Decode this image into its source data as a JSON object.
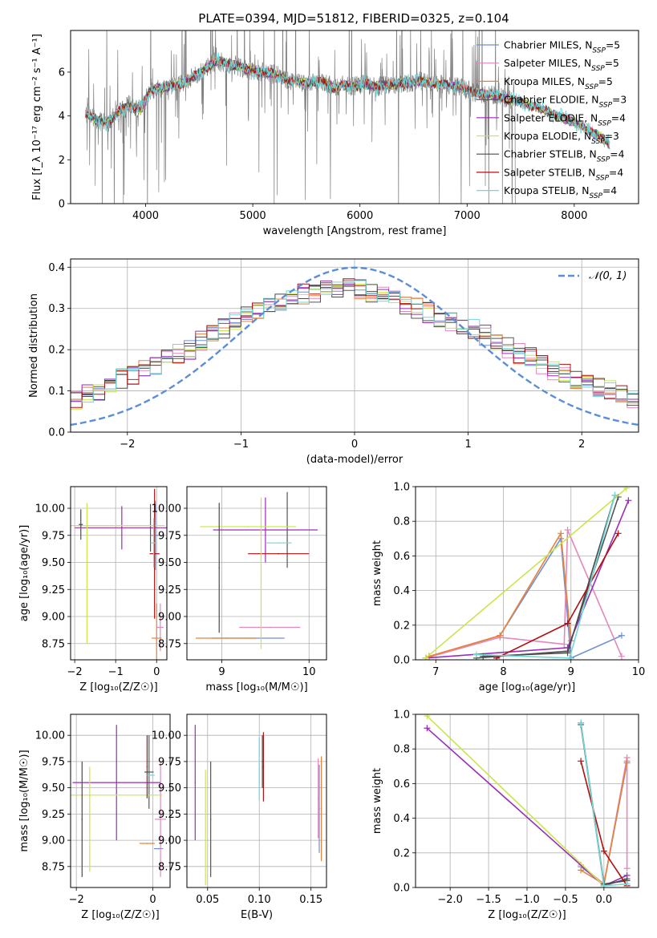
{
  "figure": {
    "title": "PLATE=0394, MJD=51812, FIBERID=0325, z=0.104"
  },
  "colors": {
    "Chabrier MILES": "#6f8fd6",
    "Salpeter MILES": "#e389b9",
    "Kroupa MILES": "#e8823a",
    "Chabrier ELODIE": "#555555",
    "Salpeter ELODIE": "#9a2db8",
    "Kroupa ELODIE": "#c8e64a",
    "Chabrier STELIB": "#4a4a4a",
    "Salpeter STELIB": "#b01010",
    "Kroupa STELIB": "#6fd8d8",
    "data": "#808080",
    "normal": "#5b8ed8"
  },
  "chart_data": [
    {
      "id": "spectrum",
      "type": "line",
      "title": "PLATE=0394, MJD=51812, FIBERID=0325, z=0.104",
      "xlabel": "wavelength [Angstrom, rest frame]",
      "ylabel": "Flux [f_λ 10⁻¹⁷ erg cm⁻² s⁻¹ A⁻¹]",
      "xlim": [
        3300,
        8600
      ],
      "ylim": [
        0,
        7.9
      ],
      "xticks": [
        4000,
        5000,
        6000,
        7000,
        8000
      ],
      "yticks": [
        0,
        2,
        4,
        6
      ],
      "grid": false,
      "legend_position": "upper-right",
      "legend": [
        "Chabrier MILES, N_SSP=5",
        "Salpeter MILES, N_SSP=5",
        "Kroupa MILES, N_SSP=5",
        "Chabrier ELODIE, N_SSP=3",
        "Salpeter ELODIE, N_SSP=4",
        "Kroupa ELODIE, N_SSP=3",
        "Chabrier STELIB, N_SSP=4",
        "Salpeter STELIB, N_SSP=4",
        "Kroupa STELIB, N_SSP=4"
      ],
      "model_continuum": {
        "x": [
          3440,
          3550,
          3650,
          3750,
          3850,
          3950,
          4050,
          4150,
          4250,
          4350,
          4450,
          4550,
          4650,
          4750,
          4850,
          4950,
          5050,
          5150,
          5250,
          5350,
          5450,
          5550,
          5650,
          5750,
          5850,
          5950,
          6050,
          6150,
          6250,
          6350,
          6450,
          6550,
          6650,
          6750,
          6850,
          6950,
          7050,
          7150,
          7250,
          7350,
          7450,
          7550,
          7650,
          7750,
          7850,
          7950,
          8050,
          8150,
          8250,
          8330
        ],
        "y": [
          4.1,
          3.8,
          3.7,
          4.2,
          4.5,
          4.3,
          5.2,
          5.3,
          5.4,
          5.5,
          5.8,
          6.1,
          6.5,
          6.4,
          6.3,
          6.1,
          6.0,
          6.0,
          5.8,
          5.6,
          5.55,
          5.5,
          5.6,
          5.3,
          5.4,
          5.35,
          5.45,
          5.35,
          5.4,
          5.45,
          5.5,
          5.6,
          5.5,
          5.45,
          5.4,
          5.3,
          5.1,
          5.0,
          4.95,
          4.8,
          4.7,
          4.55,
          4.4,
          4.2,
          4.0,
          3.8,
          3.6,
          3.3,
          3.05,
          2.7
        ]
      }
    },
    {
      "id": "residuals",
      "type": "line",
      "xlabel": "(data-model)/error",
      "ylabel": "Normed distribution",
      "xlim": [
        -2.5,
        2.5
      ],
      "ylim": [
        0,
        0.42
      ],
      "xticks": [
        -2,
        -1,
        0,
        1,
        2
      ],
      "yticks": [
        0.0,
        0.1,
        0.2,
        0.3,
        0.4
      ],
      "grid": true,
      "legend_position": "upper-right",
      "legend": [
        "𝒩(0, 1)"
      ],
      "bin_width": 0.1,
      "histogram_base": [
        0.03,
        0.035,
        0.038,
        0.045,
        0.055,
        0.06,
        0.065,
        0.07,
        0.08,
        0.09,
        0.1,
        0.11,
        0.13,
        0.14,
        0.15,
        0.165,
        0.175,
        0.19,
        0.2,
        0.22,
        0.235,
        0.25,
        0.27,
        0.285,
        0.3,
        0.31,
        0.32,
        0.33,
        0.335,
        0.34,
        0.345,
        0.35,
        0.35,
        0.345,
        0.34,
        0.33,
        0.32,
        0.31,
        0.3,
        0.29,
        0.28,
        0.27,
        0.26,
        0.25,
        0.235,
        0.22,
        0.205,
        0.19,
        0.18,
        0.165,
        0.15,
        0.14,
        0.13,
        0.12,
        0.11,
        0.1,
        0.09,
        0.08,
        0.072,
        0.065,
        0.058,
        0.052,
        0.047,
        0.042,
        0.038,
        0.035,
        0.032,
        0.03
      ]
    },
    {
      "id": "age_vs_Z",
      "type": "scatter",
      "xlabel": "Z [log₁₀(Z/Z☉)]",
      "ylabel": "age  [log₁₀(age/yr)]",
      "xlim": [
        -2.1,
        0.25
      ],
      "ylim": [
        8.6,
        10.2
      ],
      "xticks": [
        -2,
        -1,
        0
      ],
      "yticks": [
        8.75,
        9.0,
        9.25,
        9.5,
        9.75,
        10.0
      ],
      "grid": true,
      "points": [
        {
          "series": "Chabrier MILES",
          "x": -0.03,
          "y": 9.75,
          "xerr": 0.1,
          "yerr": 0.32
        },
        {
          "series": "Salpeter MILES",
          "x": 0.09,
          "y": 8.9,
          "xerr": 0.08,
          "yerr": 0.22
        },
        {
          "series": "Kroupa MILES",
          "x": 0.0,
          "y": 8.8,
          "xerr": 0.12,
          "yerr": 0.32
        },
        {
          "series": "Chabrier ELODIE",
          "x": -0.15,
          "y": 9.82,
          "xerr": 0.02,
          "yerr": 0.22
        },
        {
          "series": "Salpeter ELODIE",
          "x": -0.85,
          "y": 9.82,
          "xerr": 1.15,
          "yerr": 0.2
        },
        {
          "series": "Kroupa ELODIE",
          "x": -0.95,
          "y": 9.84,
          "xerr": 1.15,
          "yerr": 0.0
        },
        {
          "series": "Chabrier STELIB",
          "x": -1.85,
          "y": 9.85,
          "xerr": 0.05,
          "yerr": 0.14
        },
        {
          "series": "Salpeter STELIB",
          "x": -0.05,
          "y": 9.58,
          "xerr": 0.12,
          "yerr": 0.6
        },
        {
          "series": "Kroupa STELIB",
          "x": -0.07,
          "y": 9.68,
          "xerr": 0.08,
          "yerr": 0.23
        },
        {
          "series": "Kroupa ELODIE",
          "x": -1.7,
          "y": 9.4,
          "xerr": 0.0,
          "yerr": 0.65
        }
      ]
    },
    {
      "id": "age_vs_mass",
      "type": "scatter",
      "xlabel": "mass [log₁₀(M/M☉)]",
      "ylabel": "",
      "xlim": [
        8.6,
        10.2
      ],
      "ylim": [
        8.6,
        10.2
      ],
      "xticks": [
        9,
        10
      ],
      "yticks": [
        8.75,
        9.0,
        9.25,
        9.5,
        9.75,
        10.0
      ],
      "grid": true,
      "points": [
        {
          "series": "Chabrier MILES",
          "x": 9.3,
          "y": 8.8,
          "xerr": 0.42,
          "yerr": 0.0
        },
        {
          "series": "Salpeter MILES",
          "x": 9.55,
          "y": 8.9,
          "xerr": 0.35,
          "yerr": 0.0
        },
        {
          "series": "Kroupa MILES",
          "x": 9.05,
          "y": 8.8,
          "xerr": 0.35,
          "yerr": 0.0
        },
        {
          "series": "Chabrier ELODIE",
          "x": 9.75,
          "y": 9.8,
          "xerr": 0.0,
          "yerr": 0.35
        },
        {
          "series": "Salpeter ELODIE",
          "x": 9.5,
          "y": 9.8,
          "xerr": 0.6,
          "yerr": 0.3
        },
        {
          "series": "Kroupa ELODIE",
          "x": 9.3,
          "y": 9.83,
          "xerr": 0.55,
          "yerr": 0.0
        },
        {
          "series": "Chabrier STELIB",
          "x": 8.97,
          "y": 9.45,
          "xerr": 0.0,
          "yerr": 0.6
        },
        {
          "series": "Salpeter STELIB",
          "x": 9.65,
          "y": 9.58,
          "xerr": 0.35,
          "yerr": 0.0
        },
        {
          "series": "Kroupa STELIB",
          "x": 9.65,
          "y": 9.68,
          "xerr": 0.15,
          "yerr": 0.0
        },
        {
          "series": "Kroupa ELODIE",
          "x": 9.45,
          "y": 9.4,
          "xerr": 0.0,
          "yerr": 0.7
        }
      ]
    },
    {
      "id": "massweight_vs_age",
      "type": "line",
      "xlabel": "age  [log₁₀(age/yr)]",
      "ylabel": "mass weight",
      "xlim": [
        6.7,
        10.0
      ],
      "ylim": [
        0,
        1
      ],
      "xticks": [
        7,
        8,
        9,
        10
      ],
      "yticks": [
        0.0,
        0.2,
        0.4,
        0.6,
        0.8,
        1.0
      ],
      "grid": true,
      "series": [
        {
          "name": "Chabrier MILES",
          "x": [
            6.85,
            7.95,
            8.85,
            9.0,
            9.75
          ],
          "y": [
            0.01,
            0.14,
            0.7,
            0.01,
            0.14
          ]
        },
        {
          "name": "Salpeter MILES",
          "x": [
            6.85,
            7.95,
            8.9,
            8.95,
            9.75
          ],
          "y": [
            0.01,
            0.13,
            0.09,
            0.75,
            0.02
          ]
        },
        {
          "name": "Kroupa MILES",
          "x": [
            6.9,
            7.95,
            8.85,
            9.0
          ],
          "y": [
            0.02,
            0.14,
            0.73,
            0.11
          ]
        },
        {
          "name": "Chabrier ELODIE",
          "x": [
            7.6,
            8.95,
            9.7
          ],
          "y": [
            0.01,
            0.05,
            0.94
          ]
        },
        {
          "name": "Salpeter ELODIE",
          "x": [
            6.85,
            8.95,
            9.85
          ],
          "y": [
            0.01,
            0.07,
            0.92
          ]
        },
        {
          "name": "Kroupa ELODIE",
          "x": [
            6.85,
            9.82
          ],
          "y": [
            0.01,
            0.99
          ]
        },
        {
          "name": "Chabrier STELIB",
          "x": [
            7.7,
            8.95,
            9.65
          ],
          "y": [
            0.02,
            0.04,
            0.95
          ]
        },
        {
          "name": "Salpeter STELIB",
          "x": [
            7.9,
            8.95,
            9.7
          ],
          "y": [
            0.01,
            0.21,
            0.73
          ]
        },
        {
          "name": "Kroupa STELIB",
          "x": [
            7.6,
            8.98,
            9.65
          ],
          "y": [
            0.03,
            0.01,
            0.95
          ]
        }
      ]
    },
    {
      "id": "mass_vs_Z",
      "type": "scatter",
      "xlabel": "Z [log₁₀(Z/Z☉)]",
      "ylabel": "mass [log₁₀(M/M☉)]",
      "xlim": [
        -2.15,
        0.45
      ],
      "ylim": [
        8.55,
        10.2
      ],
      "xticks": [
        -2,
        0
      ],
      "yticks": [
        8.75,
        9.0,
        9.25,
        9.5,
        9.75,
        10.0
      ],
      "grid": true,
      "points": [
        {
          "series": "Chabrier MILES",
          "x": 0.15,
          "y": 8.92,
          "xerr": 0.12,
          "yerr": 0.0
        },
        {
          "series": "Salpeter MILES",
          "x": 0.2,
          "y": 9.2,
          "xerr": 0.15,
          "yerr": 0.55
        },
        {
          "series": "Kroupa MILES",
          "x": -0.15,
          "y": 8.97,
          "xerr": 0.2,
          "yerr": 0.0
        },
        {
          "series": "Chabrier ELODIE",
          "x": -0.1,
          "y": 9.65,
          "xerr": 0.12,
          "yerr": 0.35
        },
        {
          "series": "Salpeter ELODIE",
          "x": -0.95,
          "y": 9.55,
          "xerr": 1.15,
          "yerr": 0.55
        },
        {
          "series": "Kroupa ELODIE",
          "x": -0.95,
          "y": 9.43,
          "xerr": 1.2,
          "yerr": 0.0
        },
        {
          "series": "Chabrier STELIB",
          "x": -1.85,
          "y": 9.2,
          "xerr": 0.0,
          "yerr": 0.55
        },
        {
          "series": "Salpeter STELIB",
          "x": -0.15,
          "y": 9.7,
          "xerr": 0.0,
          "yerr": 0.3
        },
        {
          "series": "Kroupa STELIB",
          "x": -0.05,
          "y": 9.62,
          "xerr": 0.1,
          "yerr": 0.0
        },
        {
          "series": "Kroupa ELODIE",
          "x": -1.65,
          "y": 9.2,
          "xerr": 0.0,
          "yerr": 0.5
        }
      ]
    },
    {
      "id": "mass_vs_ebv",
      "type": "scatter",
      "xlabel": "E(B-V)",
      "ylabel": "",
      "xlim": [
        0.03,
        0.165
      ],
      "ylim": [
        8.55,
        10.2
      ],
      "xticks": [
        0.05,
        0.1,
        0.15
      ],
      "yticks": [
        8.75,
        9.0,
        9.25,
        9.5,
        9.75,
        10.0
      ],
      "grid": true,
      "points": [
        {
          "series": "Salpeter ELODIE",
          "x": 0.038,
          "y": 9.55,
          "xerr": 0.0,
          "yerr": 0.55
        },
        {
          "series": "Kroupa ELODIE",
          "x": 0.048,
          "y": 9.12,
          "xerr": 0.0,
          "yerr": 0.55
        },
        {
          "series": "Chabrier ELODIE",
          "x": 0.053,
          "y": 9.2,
          "xerr": 0.0,
          "yerr": 0.55
        },
        {
          "series": "Kroupa STELIB",
          "x": 0.1,
          "y": 9.68,
          "xerr": 0.0,
          "yerr": 0.3
        },
        {
          "series": "Chabrier STELIB",
          "x": 0.103,
          "y": 9.75,
          "xerr": 0.0,
          "yerr": 0.25
        },
        {
          "series": "Salpeter STELIB",
          "x": 0.104,
          "y": 9.7,
          "xerr": 0.0,
          "yerr": 0.33
        },
        {
          "series": "Salpeter MILES",
          "x": 0.157,
          "y": 9.4,
          "xerr": 0.0,
          "yerr": 0.38
        },
        {
          "series": "Kroupa MILES",
          "x": 0.16,
          "y": 9.3,
          "xerr": 0.0,
          "yerr": 0.5
        },
        {
          "series": "Chabrier MILES",
          "x": 0.158,
          "y": 9.3,
          "xerr": 0.0,
          "yerr": 0.42
        }
      ]
    },
    {
      "id": "massweight_vs_Z",
      "type": "line",
      "xlabel": "Z [log₁₀(Z/Z☉)]",
      "ylabel": "mass weight",
      "xlim": [
        -2.45,
        0.45
      ],
      "ylim": [
        0,
        1
      ],
      "xticks": [
        -2.0,
        -1.5,
        -1.0,
        -0.5,
        0.0
      ],
      "yticks": [
        0.0,
        0.2,
        0.4,
        0.6,
        0.8,
        1.0
      ],
      "grid": true,
      "series": [
        {
          "name": "Chabrier MILES",
          "x": [
            -0.3,
            0.0,
            0.3
          ],
          "y": [
            0.12,
            0.02,
            0.72
          ]
        },
        {
          "name": "Salpeter MILES",
          "x": [
            -0.3,
            0.0,
            0.3,
            0.3
          ],
          "y": [
            0.13,
            0.02,
            0.75,
            0.11
          ]
        },
        {
          "name": "Kroupa MILES",
          "x": [
            -0.3,
            0.0,
            0.3
          ],
          "y": [
            0.1,
            0.02,
            0.73
          ]
        },
        {
          "name": "Chabrier ELODIE",
          "x": [
            -0.3,
            0.0,
            0.3
          ],
          "y": [
            0.94,
            0.01,
            0.05
          ]
        },
        {
          "name": "Salpeter ELODIE",
          "x": [
            -2.3,
            0.0,
            0.3
          ],
          "y": [
            0.92,
            0.01,
            0.07
          ]
        },
        {
          "name": "Kroupa ELODIE",
          "x": [
            -2.3,
            0.0
          ],
          "y": [
            0.99,
            0.01
          ]
        },
        {
          "name": "Chabrier STELIB",
          "x": [
            -0.3,
            0.0,
            0.3
          ],
          "y": [
            0.95,
            0.02,
            0.04
          ]
        },
        {
          "name": "Salpeter STELIB",
          "x": [
            -0.3,
            0.0,
            0.3
          ],
          "y": [
            0.73,
            0.21,
            0.01
          ]
        },
        {
          "name": "Kroupa STELIB",
          "x": [
            -0.3,
            0.0,
            0.3
          ],
          "y": [
            0.95,
            0.01,
            0.02
          ]
        }
      ]
    }
  ]
}
